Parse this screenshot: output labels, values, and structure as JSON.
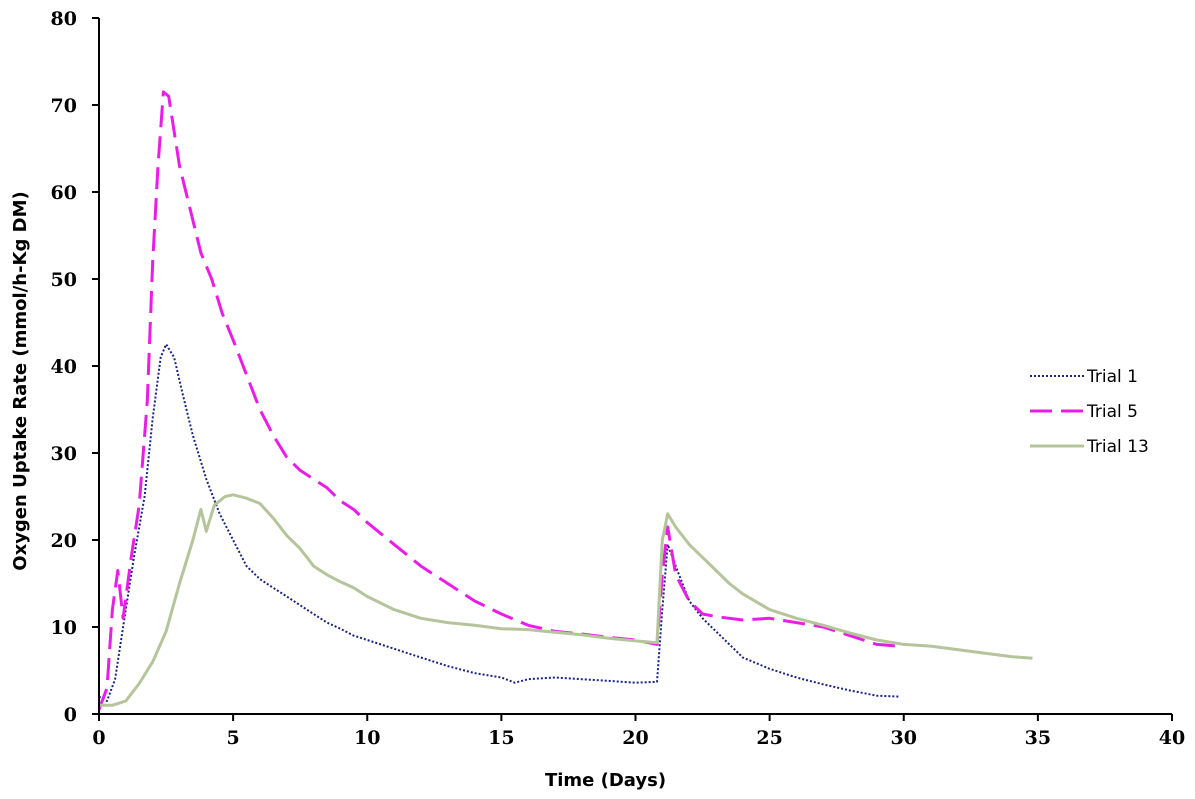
{
  "chart_data": {
    "type": "line",
    "title": "",
    "xlabel": "Time (Days)",
    "ylabel": "Oxygen Uptake Rate (mmol/h-Kg DM)",
    "xlim": [
      0,
      40
    ],
    "ylim": [
      0,
      80
    ],
    "xticks": [
      0,
      5,
      10,
      15,
      20,
      25,
      30,
      35,
      40
    ],
    "yticks": [
      0,
      10,
      20,
      30,
      40,
      50,
      60,
      70,
      80
    ],
    "grid": false,
    "legend_position": "right",
    "series": [
      {
        "name": "Trial 1",
        "color": "#1a237e",
        "dash": "dotted",
        "points": [
          [
            0,
            2
          ],
          [
            0.3,
            1.5
          ],
          [
            0.6,
            4
          ],
          [
            0.9,
            10
          ],
          [
            1.3,
            18
          ],
          [
            1.7,
            25
          ],
          [
            2.0,
            34
          ],
          [
            2.3,
            41
          ],
          [
            2.5,
            42.5
          ],
          [
            2.8,
            41
          ],
          [
            3.1,
            37
          ],
          [
            3.5,
            32
          ],
          [
            4.0,
            27
          ],
          [
            4.5,
            23
          ],
          [
            5.0,
            20
          ],
          [
            5.5,
            17
          ],
          [
            6.0,
            15.5
          ],
          [
            6.5,
            14.5
          ],
          [
            7.0,
            13.5
          ],
          [
            7.5,
            12.5
          ],
          [
            8.0,
            11.5
          ],
          [
            8.5,
            10.5
          ],
          [
            9.0,
            9.8
          ],
          [
            9.5,
            9
          ],
          [
            10.0,
            8.5
          ],
          [
            11.0,
            7.5
          ],
          [
            12.0,
            6.5
          ],
          [
            13.0,
            5.5
          ],
          [
            14.0,
            4.7
          ],
          [
            15.0,
            4.2
          ],
          [
            15.5,
            3.6
          ],
          [
            16.0,
            4
          ],
          [
            17.0,
            4.2
          ],
          [
            18.0,
            4
          ],
          [
            19.0,
            3.8
          ],
          [
            20.0,
            3.6
          ],
          [
            20.8,
            3.7
          ],
          [
            21.0,
            12
          ],
          [
            21.2,
            19.5
          ],
          [
            21.5,
            17
          ],
          [
            22.0,
            13
          ],
          [
            22.5,
            11
          ],
          [
            23.0,
            9.5
          ],
          [
            23.5,
            8
          ],
          [
            24.0,
            6.5
          ],
          [
            25.0,
            5.2
          ],
          [
            26.0,
            4.2
          ],
          [
            27.0,
            3.4
          ],
          [
            28.0,
            2.7
          ],
          [
            29.0,
            2.1
          ],
          [
            29.8,
            2
          ]
        ]
      },
      {
        "name": "Trial 5",
        "color": "#e91ee6",
        "dash": "dashed",
        "points": [
          [
            0,
            0.5
          ],
          [
            0.3,
            3
          ],
          [
            0.5,
            12
          ],
          [
            0.7,
            16.5
          ],
          [
            0.9,
            11
          ],
          [
            1.2,
            18
          ],
          [
            1.5,
            24
          ],
          [
            1.8,
            36
          ],
          [
            2.0,
            52
          ],
          [
            2.2,
            63
          ],
          [
            2.4,
            71.5
          ],
          [
            2.6,
            71
          ],
          [
            2.8,
            67
          ],
          [
            3.0,
            63
          ],
          [
            3.4,
            58
          ],
          [
            3.8,
            53
          ],
          [
            4.2,
            50
          ],
          [
            4.6,
            46
          ],
          [
            5.0,
            43
          ],
          [
            5.5,
            39
          ],
          [
            6.0,
            35
          ],
          [
            6.5,
            32
          ],
          [
            7.0,
            29.5
          ],
          [
            7.5,
            28
          ],
          [
            8.0,
            27
          ],
          [
            8.5,
            26
          ],
          [
            9.0,
            24.5
          ],
          [
            9.5,
            23.5
          ],
          [
            10.0,
            22
          ],
          [
            11.0,
            19.5
          ],
          [
            12.0,
            17
          ],
          [
            13.0,
            15
          ],
          [
            14.0,
            13
          ],
          [
            15.0,
            11.5
          ],
          [
            16.0,
            10.2
          ],
          [
            17.0,
            9.5
          ],
          [
            18.0,
            9.2
          ],
          [
            19.0,
            8.8
          ],
          [
            20.0,
            8.5
          ],
          [
            20.8,
            8
          ],
          [
            21.0,
            16
          ],
          [
            21.2,
            21.5
          ],
          [
            21.5,
            16
          ],
          [
            22.0,
            13
          ],
          [
            22.5,
            11.5
          ],
          [
            23.0,
            11.2
          ],
          [
            24.0,
            10.8
          ],
          [
            25.0,
            11
          ],
          [
            26.0,
            10.5
          ],
          [
            27.0,
            10
          ],
          [
            28.0,
            9
          ],
          [
            29.0,
            8
          ],
          [
            29.8,
            7.8
          ]
        ]
      },
      {
        "name": "Trial 13",
        "color": "#b5c49a",
        "dash": "solid",
        "points": [
          [
            0,
            1
          ],
          [
            0.5,
            1
          ],
          [
            1.0,
            1.5
          ],
          [
            1.5,
            3.5
          ],
          [
            2.0,
            6
          ],
          [
            2.5,
            9.5
          ],
          [
            3.0,
            15
          ],
          [
            3.5,
            20
          ],
          [
            3.8,
            23.5
          ],
          [
            4.0,
            21
          ],
          [
            4.3,
            24
          ],
          [
            4.7,
            25
          ],
          [
            5.0,
            25.2
          ],
          [
            5.5,
            24.8
          ],
          [
            6.0,
            24.2
          ],
          [
            6.5,
            22.5
          ],
          [
            7.0,
            20.5
          ],
          [
            7.5,
            19
          ],
          [
            8.0,
            17
          ],
          [
            8.5,
            16
          ],
          [
            9.0,
            15.2
          ],
          [
            9.5,
            14.5
          ],
          [
            10.0,
            13.5
          ],
          [
            11.0,
            12
          ],
          [
            12.0,
            11
          ],
          [
            13.0,
            10.5
          ],
          [
            14.0,
            10.2
          ],
          [
            15.0,
            9.8
          ],
          [
            16.0,
            9.7
          ],
          [
            17.0,
            9.4
          ],
          [
            18.0,
            9.1
          ],
          [
            19.0,
            8.7
          ],
          [
            20.0,
            8.4
          ],
          [
            20.8,
            8.2
          ],
          [
            21.0,
            20
          ],
          [
            21.2,
            23
          ],
          [
            21.5,
            21.5
          ],
          [
            22.0,
            19.5
          ],
          [
            22.5,
            18
          ],
          [
            23.0,
            16.5
          ],
          [
            23.5,
            15
          ],
          [
            24.0,
            13.8
          ],
          [
            25.0,
            12
          ],
          [
            26.0,
            11
          ],
          [
            27.0,
            10.2
          ],
          [
            28.0,
            9.3
          ],
          [
            29.0,
            8.5
          ],
          [
            30.0,
            8
          ],
          [
            31.0,
            7.8
          ],
          [
            32.0,
            7.4
          ],
          [
            33.0,
            7
          ],
          [
            34.0,
            6.6
          ],
          [
            34.8,
            6.4
          ]
        ]
      }
    ]
  }
}
